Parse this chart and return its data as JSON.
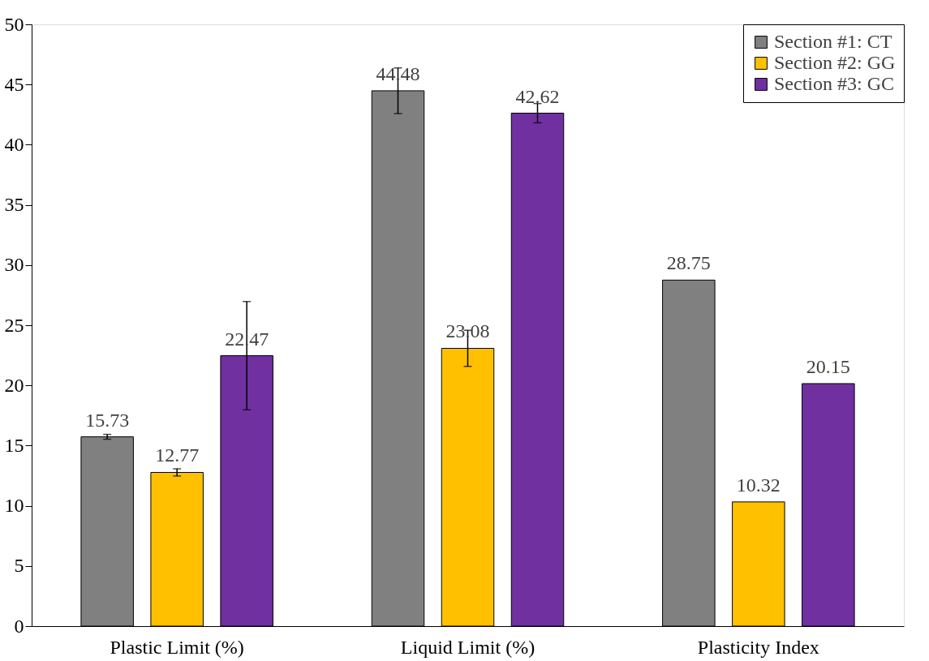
{
  "chart_data": {
    "type": "bar",
    "categories": [
      "Plastic Limit (%)",
      "Liquid Limit (%)",
      "Plasticity Index"
    ],
    "series": [
      {
        "name": "Section #1: CT",
        "color": "#808080",
        "values": [
          15.73,
          44.48,
          28.75
        ],
        "errors": [
          0.2,
          1.9,
          null
        ]
      },
      {
        "name": "Section #2: GG",
        "color": "#ffc000",
        "values": [
          12.77,
          23.08,
          10.32
        ],
        "errors": [
          0.3,
          1.5,
          null
        ]
      },
      {
        "name": "Section #3: GC",
        "color": "#7030a0",
        "values": [
          22.47,
          42.62,
          20.15
        ],
        "errors": [
          4.5,
          0.8,
          null
        ]
      }
    ],
    "ylim": [
      0,
      50
    ],
    "yticks": [
      0,
      5,
      10,
      15,
      20,
      25,
      30,
      35,
      40,
      45,
      50
    ],
    "grid": false,
    "legend": "top right",
    "data_labels": true
  }
}
